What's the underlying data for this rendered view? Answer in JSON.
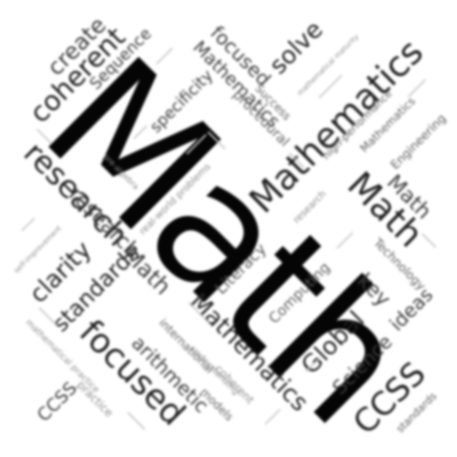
{
  "cloud": {
    "main": "Math",
    "words": [
      "Mathematics",
      "Math",
      "Math",
      "Math",
      "Mathematics",
      "Mathematics",
      "Mathematics",
      "CCSS",
      "CCSS",
      "focused",
      "focused",
      "research",
      "research",
      "coherent",
      "coherent",
      "create",
      "Sequence",
      "solve",
      "specificity",
      "procedural",
      "Success",
      "clarity",
      "standards",
      "standards",
      "Global",
      "Science",
      "ideas",
      "key",
      "Technology",
      "Engineering",
      "Literacy",
      "Computing",
      "arithmetic",
      "international",
      "models",
      "practice",
      "high-performance",
      "real-world problems",
      "mathematical practice",
      "mathematical maturity",
      "understanding",
      "self-improvement",
      "pre-algebra"
    ]
  }
}
